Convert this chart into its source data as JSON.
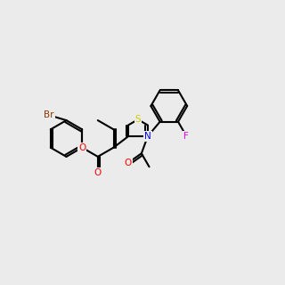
{
  "background_color": "#ebebeb",
  "bond_color": "#000000",
  "atom_colors": {
    "Br": "#8B3A00",
    "O": "#FF0000",
    "N": "#0000FF",
    "S": "#CCCC00",
    "F": "#FF00FF",
    "C": "#000000"
  },
  "bl": 0.68,
  "lw": 1.5,
  "fs": 7.5
}
